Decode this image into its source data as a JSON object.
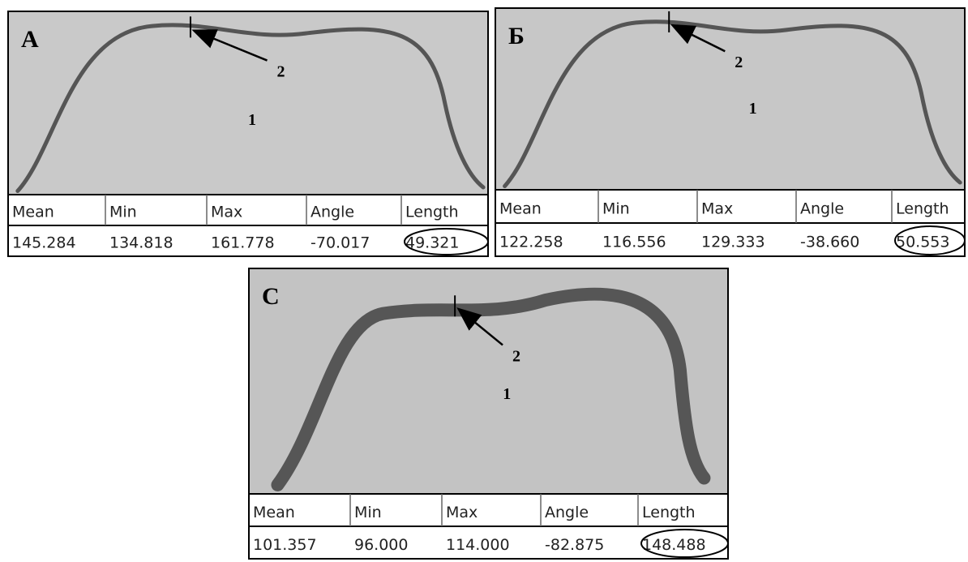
{
  "panels": [
    {
      "label": "А",
      "marker_1": "1",
      "marker_2": "2",
      "table": {
        "headers": [
          "Mean",
          "Min",
          "Max",
          "Angle",
          "Length"
        ],
        "rows": [
          [
            "145.284",
            "134.818",
            "161.778",
            "-70.017",
            "49.321"
          ]
        ]
      }
    },
    {
      "label": "Б",
      "marker_1": "1",
      "marker_2": "2",
      "table": {
        "headers": [
          "Mean",
          "Min",
          "Max",
          "Angle",
          "Length"
        ],
        "rows": [
          [
            "122.258",
            "116.556",
            "129.333",
            "-38.660",
            "50.553"
          ]
        ]
      }
    },
    {
      "label": "С",
      "marker_1": "1",
      "marker_2": "2",
      "table": {
        "headers": [
          "Mean",
          "Min",
          "Max",
          "Angle",
          "Length"
        ],
        "rows": [
          [
            "101.357",
            "96.000",
            "114.000",
            "-82.875",
            "148.488"
          ]
        ]
      }
    }
  ]
}
